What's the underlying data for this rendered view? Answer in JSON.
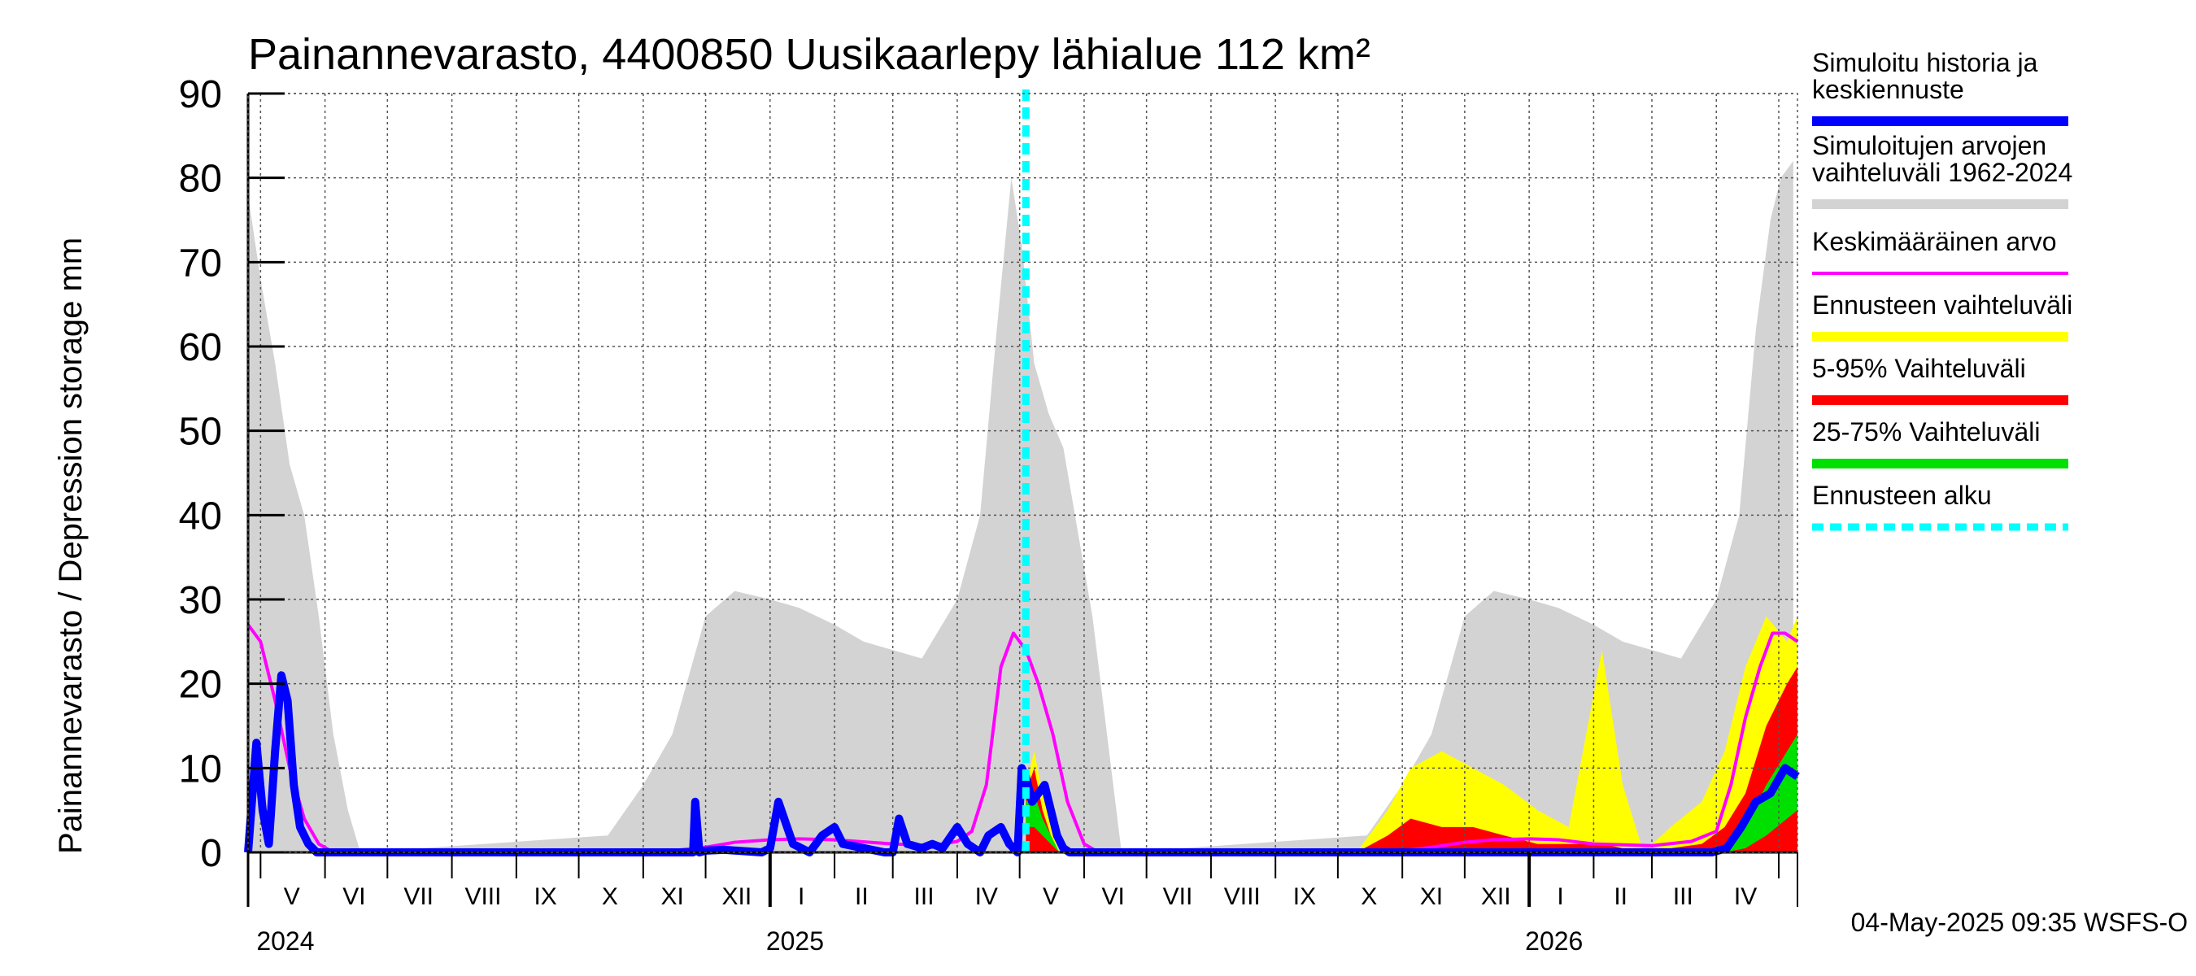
{
  "chart_data": {
    "type": "area",
    "title": "Painannevarasto, 4400850 Uusikaarlepy lähialue 112 km²",
    "ylabel": "Painannevarasto / Depression storage    mm",
    "ylim": [
      0,
      90
    ],
    "yticks": [
      0,
      10,
      20,
      30,
      40,
      50,
      60,
      70,
      80,
      90
    ],
    "xlim": [
      "2024-04-25",
      "2026-05-10"
    ],
    "grid": true,
    "legend_position": "right",
    "month_labels": [
      {
        "label": "V",
        "date": "2024-05-16"
      },
      {
        "label": "VI",
        "date": "2024-06-15"
      },
      {
        "label": "VII",
        "date": "2024-07-16"
      },
      {
        "label": "VIII",
        "date": "2024-08-16"
      },
      {
        "label": "IX",
        "date": "2024-09-15"
      },
      {
        "label": "X",
        "date": "2024-10-16"
      },
      {
        "label": "XI",
        "date": "2024-11-15"
      },
      {
        "label": "XII",
        "date": "2024-12-16"
      },
      {
        "label": "I",
        "date": "2025-01-16"
      },
      {
        "label": "II",
        "date": "2025-02-14"
      },
      {
        "label": "III",
        "date": "2025-03-16"
      },
      {
        "label": "IV",
        "date": "2025-04-15"
      },
      {
        "label": "V",
        "date": "2025-05-16"
      },
      {
        "label": "VI",
        "date": "2025-06-15"
      },
      {
        "label": "VII",
        "date": "2025-07-16"
      },
      {
        "label": "VIII",
        "date": "2025-08-16"
      },
      {
        "label": "IX",
        "date": "2025-09-15"
      },
      {
        "label": "X",
        "date": "2025-10-16"
      },
      {
        "label": "XI",
        "date": "2025-11-15"
      },
      {
        "label": "XII",
        "date": "2025-12-16"
      },
      {
        "label": "I",
        "date": "2026-01-16"
      },
      {
        "label": "II",
        "date": "2026-02-14"
      },
      {
        "label": "III",
        "date": "2026-03-16"
      },
      {
        "label": "IV",
        "date": "2026-04-15"
      }
    ],
    "year_labels": [
      {
        "label": "2024",
        "date": "2024-05-01"
      },
      {
        "label": "2025",
        "date": "2025-01-01"
      },
      {
        "label": "2026",
        "date": "2026-01-01"
      }
    ],
    "forecast_start": "2025-05-04",
    "series": [
      {
        "name": "Simuloitujen arvojen vaihteluväli 1962-2024",
        "color": "#d3d3d3",
        "kind": "band",
        "x": [
          "2024-04-25",
          "2024-05-01",
          "2024-05-08",
          "2024-05-15",
          "2024-05-22",
          "2024-05-29",
          "2024-06-05",
          "2024-06-12",
          "2024-06-18",
          "2024-10-15",
          "2024-11-01",
          "2024-11-15",
          "2024-12-01",
          "2024-12-15",
          "2025-01-01",
          "2025-01-15",
          "2025-02-01",
          "2025-02-15",
          "2025-03-01",
          "2025-03-15",
          "2025-04-01",
          "2025-04-12",
          "2025-04-20",
          "2025-04-27",
          "2025-05-02",
          "2025-05-08",
          "2025-05-15",
          "2025-05-22",
          "2025-05-29",
          "2025-06-05",
          "2025-06-12",
          "2025-06-19",
          "2025-10-15",
          "2025-11-01",
          "2025-11-15",
          "2025-12-01",
          "2025-12-15",
          "2026-01-01",
          "2026-01-15",
          "2026-02-01",
          "2026-02-15",
          "2026-03-01",
          "2026-03-15",
          "2026-04-01",
          "2026-04-12",
          "2026-04-20",
          "2026-04-27",
          "2026-05-02",
          "2026-05-08"
        ],
        "low": [
          0,
          0,
          0,
          0,
          0,
          0,
          0,
          0,
          0,
          0,
          0,
          0,
          0,
          0,
          0,
          0,
          0,
          0,
          0,
          0,
          0,
          0,
          0,
          0,
          0,
          0,
          0,
          0,
          0,
          0,
          0,
          0,
          0,
          0,
          0,
          0,
          0,
          0,
          0,
          0,
          0,
          0,
          0,
          0,
          0,
          0,
          0,
          0,
          0
        ],
        "high": [
          78,
          68,
          58,
          46,
          40,
          28,
          14,
          5,
          0,
          2,
          8,
          14,
          28,
          31,
          30,
          29,
          27,
          25,
          24,
          23,
          30,
          40,
          62,
          80,
          72,
          58,
          52,
          48,
          38,
          28,
          14,
          0,
          2,
          8,
          14,
          28,
          31,
          30,
          29,
          27,
          25,
          24,
          23,
          30,
          40,
          62,
          75,
          80,
          82
        ]
      },
      {
        "name": "Ennusteen vaihteluväli",
        "color": "#ffff00",
        "kind": "band",
        "x": [
          "2025-05-04",
          "2025-05-08",
          "2025-05-12",
          "2025-05-16",
          "2025-05-20",
          "2025-10-10",
          "2025-10-25",
          "2025-11-05",
          "2025-11-20",
          "2025-12-05",
          "2025-12-20",
          "2026-01-05",
          "2026-01-20",
          "2026-02-05",
          "2026-02-15",
          "2026-02-25",
          "2026-03-10",
          "2026-03-25",
          "2026-04-05",
          "2026-04-15",
          "2026-04-25",
          "2026-05-05",
          "2026-05-10"
        ],
        "low": [
          0,
          0,
          0,
          0,
          0,
          0,
          0,
          0,
          0,
          0,
          0,
          0,
          0,
          0,
          0,
          0,
          0,
          0,
          0,
          0,
          0,
          0,
          0
        ],
        "high": [
          8,
          12,
          7,
          3,
          0,
          0,
          5,
          10,
          12,
          10,
          8,
          5,
          3,
          24,
          8,
          0,
          3,
          6,
          12,
          22,
          28,
          25,
          28
        ]
      },
      {
        "name": "5-95% Vaihteluväli",
        "color": "#ff0000",
        "kind": "band",
        "x": [
          "2025-05-04",
          "2025-05-08",
          "2025-05-12",
          "2025-05-16",
          "2025-05-20",
          "2025-10-10",
          "2025-10-25",
          "2025-11-05",
          "2025-11-20",
          "2025-12-05",
          "2025-12-20",
          "2026-01-05",
          "2026-01-20",
          "2026-02-05",
          "2026-02-15",
          "2026-02-25",
          "2026-03-10",
          "2026-03-25",
          "2026-04-05",
          "2026-04-15",
          "2026-04-25",
          "2026-05-05",
          "2026-05-10"
        ],
        "low": [
          0,
          0,
          0,
          0,
          0,
          0,
          0,
          0,
          0,
          0,
          0,
          0,
          0,
          0,
          0,
          0,
          0,
          0,
          0,
          0,
          0,
          0,
          0
        ],
        "high": [
          7,
          10,
          5,
          2,
          0,
          0,
          2,
          4,
          3,
          3,
          2,
          1,
          1,
          1,
          0.5,
          0.5,
          0.5,
          1,
          3,
          7,
          15,
          20,
          22
        ]
      },
      {
        "name": "25-75% Vaihteluväli",
        "color": "#00e000",
        "kind": "band",
        "x": [
          "2025-05-04",
          "2025-05-08",
          "2025-05-12",
          "2025-05-16",
          "2025-05-20",
          "2026-04-05",
          "2026-04-15",
          "2026-04-25",
          "2026-05-05",
          "2026-05-10"
        ],
        "low": [
          3,
          3,
          2,
          1,
          0,
          0,
          0.5,
          2,
          4,
          5
        ],
        "high": [
          6,
          7,
          4,
          2,
          0,
          0.5,
          3,
          8,
          12,
          14
        ]
      },
      {
        "name": "Keskimääräinen arvo",
        "color": "#ff00ff",
        "kind": "line",
        "x": [
          "2024-04-25",
          "2024-05-01",
          "2024-05-08",
          "2024-05-15",
          "2024-05-22",
          "2024-05-29",
          "2024-06-05",
          "2024-11-15",
          "2024-12-01",
          "2024-12-15",
          "2025-01-01",
          "2025-01-15",
          "2025-02-01",
          "2025-03-01",
          "2025-03-20",
          "2025-04-01",
          "2025-04-08",
          "2025-04-15",
          "2025-04-22",
          "2025-04-28",
          "2025-05-04",
          "2025-05-10",
          "2025-05-17",
          "2025-05-24",
          "2025-06-01",
          "2025-06-08",
          "2025-11-01",
          "2025-11-15",
          "2025-12-01",
          "2025-12-15",
          "2026-01-01",
          "2026-01-15",
          "2026-02-01",
          "2026-03-01",
          "2026-03-20",
          "2026-04-01",
          "2026-04-08",
          "2026-04-15",
          "2026-04-22",
          "2026-04-28",
          "2026-05-04",
          "2026-05-10"
        ],
        "y": [
          27,
          25,
          18,
          10,
          4,
          1,
          0,
          0.2,
          0.6,
          1.2,
          1.5,
          1.6,
          1.5,
          1.0,
          0.8,
          1.3,
          2.5,
          8,
          22,
          26,
          24,
          20,
          14,
          6,
          1,
          0,
          0.2,
          0.6,
          1.2,
          1.5,
          1.6,
          1.5,
          1.0,
          0.8,
          1.3,
          2.5,
          8,
          16,
          22,
          26,
          26,
          25
        ]
      },
      {
        "name": "Simuloitu historia ja keskiennuste",
        "color": "#0000ff",
        "kind": "line",
        "x": [
          "2024-04-25",
          "2024-04-29",
          "2024-05-02",
          "2024-05-05",
          "2024-05-08",
          "2024-05-11",
          "2024-05-14",
          "2024-05-17",
          "2024-05-20",
          "2024-05-24",
          "2024-05-28",
          "2024-11-25",
          "2024-11-26",
          "2024-11-28",
          "2024-12-01",
          "2024-12-10",
          "2024-12-28",
          "2025-01-01",
          "2025-01-05",
          "2025-01-12",
          "2025-01-20",
          "2025-01-26",
          "2025-02-01",
          "2025-02-05",
          "2025-02-15",
          "2025-02-25",
          "2025-03-01",
          "2025-03-04",
          "2025-03-08",
          "2025-03-15",
          "2025-03-20",
          "2025-03-25",
          "2025-04-01",
          "2025-04-06",
          "2025-04-12",
          "2025-04-16",
          "2025-04-22",
          "2025-04-26",
          "2025-04-30",
          "2025-05-02",
          "2025-05-04",
          "2025-05-07",
          "2025-05-10",
          "2025-05-13",
          "2025-05-16",
          "2025-05-19",
          "2025-05-22",
          "2025-05-25",
          "2026-03-30",
          "2026-04-06",
          "2026-04-13",
          "2026-04-20",
          "2026-04-27",
          "2026-05-04",
          "2026-05-10"
        ],
        "y": [
          0,
          13,
          5,
          1,
          12,
          21,
          18,
          8,
          3,
          1,
          0,
          0,
          6,
          0,
          0.2,
          0.3,
          0,
          0.5,
          6,
          1,
          0,
          2,
          3,
          1,
          0.5,
          0,
          0,
          4,
          1,
          0.5,
          1,
          0.5,
          3,
          1,
          0,
          2,
          3,
          1,
          0,
          10,
          9,
          6,
          7,
          8,
          5,
          2,
          0.5,
          0,
          0,
          0.5,
          3,
          6,
          7,
          10,
          9
        ]
      }
    ],
    "legend": [
      {
        "label": "Simuloitu historia ja\nkeskiennuste",
        "color": "#0000ff",
        "style": "solid-thick"
      },
      {
        "label": "Simuloitujen arvojen\nvaihteluväli 1962-2024",
        "color": "#d3d3d3",
        "style": "solid-thick"
      },
      {
        "label": "Keskimääräinen arvo",
        "color": "#ff00ff",
        "style": "solid-thin"
      },
      {
        "label": "Ennusteen vaihteluväli",
        "color": "#ffff00",
        "style": "solid-thick"
      },
      {
        "label": "5-95% Vaihteluväli",
        "color": "#ff0000",
        "style": "solid-thick"
      },
      {
        "label": "25-75% Vaihteluväli",
        "color": "#00e000",
        "style": "solid-thick"
      },
      {
        "label": "Ennusteen alku",
        "color": "#00ffff",
        "style": "dashed"
      }
    ],
    "footer": "04-May-2025 09:35 WSFS-O"
  }
}
